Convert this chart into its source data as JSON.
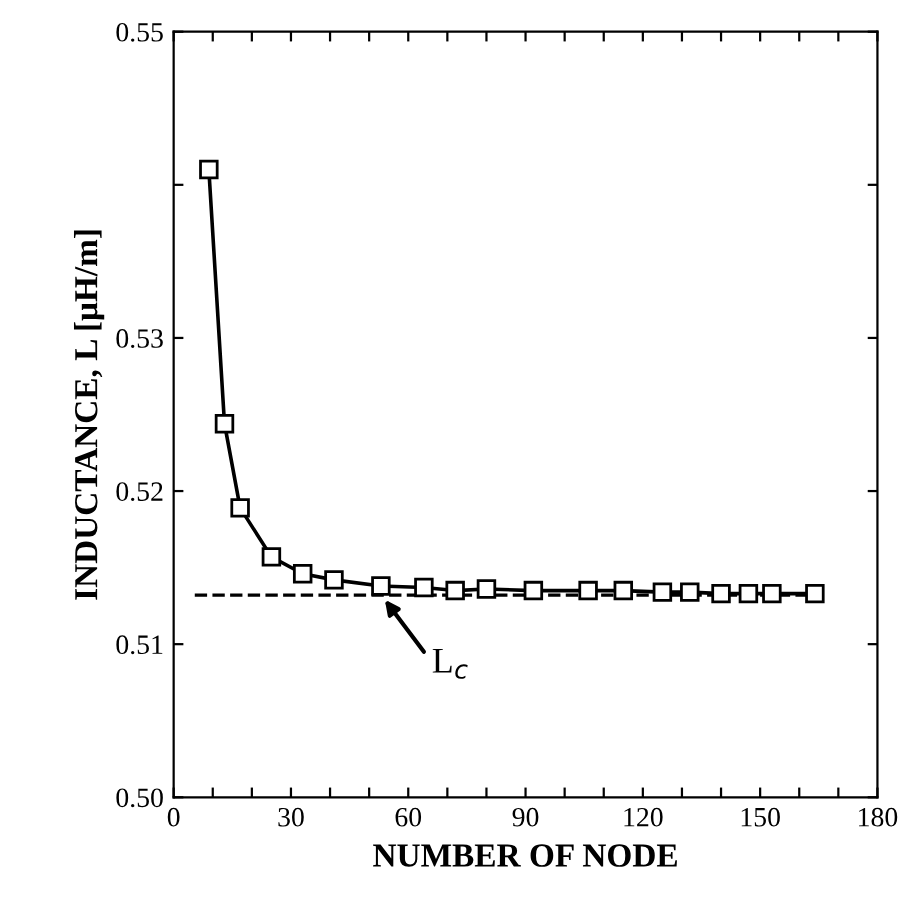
{
  "chart_data": {
    "type": "line",
    "xlabel": "NUMBER OF NODE",
    "ylabel": "INDUCTANCE, L [μH/m]",
    "x": [
      9,
      13,
      17,
      25,
      33,
      41,
      53,
      64,
      72,
      80,
      92,
      106,
      115,
      125,
      132,
      140,
      147,
      153,
      164
    ],
    "series": [
      {
        "color": "#000000",
        "values": [
          0.541,
          0.5244,
          0.5189,
          0.5157,
          0.5146,
          0.5142,
          0.5138,
          0.5137,
          0.5135,
          0.5136,
          0.5135,
          0.5135,
          0.5135,
          0.5134,
          0.5134,
          0.5133,
          0.5133,
          0.5133,
          0.5133
        ]
      }
    ],
    "marker": "square",
    "line_style": "solid",
    "ref_lines": [
      {
        "axis": "y",
        "value": 0.5132,
        "line_style": "dashed",
        "color": "#000000"
      }
    ],
    "annotations": [
      {
        "text": "L$_{c}$",
        "x": 53,
        "y": 0.5132
      }
    ],
    "xlim": [
      0,
      180
    ],
    "ylim": [
      0.5,
      0.55
    ],
    "xticks": [
      0,
      {
        "value": 10,
        "label": null
      },
      {
        "value": 20,
        "label": null
      },
      30,
      {
        "value": 40,
        "label": null
      },
      {
        "value": 50,
        "label": null
      },
      60,
      {
        "value": 70,
        "label": null
      },
      {
        "value": 80,
        "label": null
      },
      90,
      {
        "value": 100,
        "label": null
      },
      {
        "value": 110,
        "label": null
      },
      120,
      {
        "value": 130,
        "label": null
      },
      {
        "value": 140,
        "label": null
      },
      150,
      {
        "value": 160,
        "label": null
      },
      {
        "value": 170,
        "label": null
      },
      180
    ],
    "yticks": [
      {
        "value": 0.5,
        "label": "0.50"
      },
      0.51,
      0.52,
      0.53,
      {
        "value": 0.54,
        "label": null
      },
      0.55
    ],
    "grid": false
  }
}
